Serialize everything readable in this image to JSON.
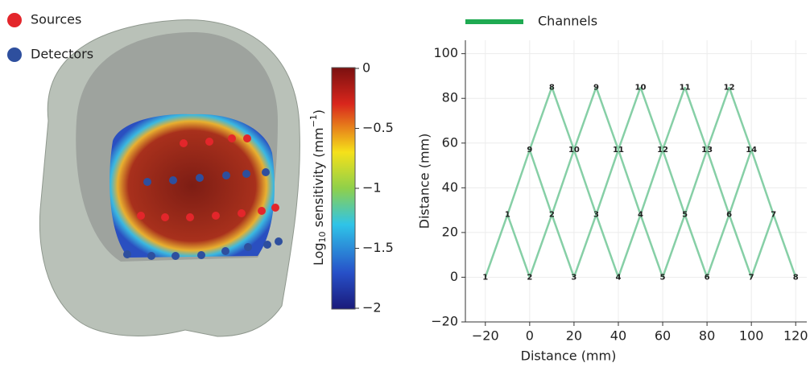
{
  "chart_data": [
    {
      "type": "colorbar",
      "colorbar_label": [
        "Log",
        "10",
        " sensitivity (mm",
        "−1",
        ")"
      ],
      "clim": [
        -2,
        0
      ],
      "cticks": [
        0,
        {
          "value": -0.5,
          "label": "−0.5"
        },
        {
          "value": -1,
          "label": "−1"
        },
        {
          "value": -1.5,
          "label": "−1.5"
        },
        {
          "value": -2,
          "label": "−2"
        }
      ]
    },
    {
      "type": "scatter",
      "xlabel": "Distance (mm)",
      "ylabel": "Distance (mm)",
      "xlim": [
        -29,
        125
      ],
      "ylim": [
        -20,
        106
      ],
      "xticks": [
        {
          "value": -20,
          "label": "−20"
        },
        0,
        20,
        40,
        60,
        80,
        100,
        120
      ],
      "yticks": [
        {
          "value": -20,
          "label": "−20"
        },
        0,
        20,
        40,
        60,
        80,
        100
      ],
      "grid": true,
      "series": [
        {
          "name": "Sources",
          "color": "#e3262b",
          "x": [
            -10,
            10,
            30,
            50,
            70,
            90,
            110,
            10,
            30,
            50,
            70,
            90
          ],
          "y": [
            28,
            28,
            28,
            28,
            28,
            28,
            28,
            85,
            85,
            85,
            85,
            85
          ],
          "labels": [
            1,
            2,
            3,
            4,
            5,
            6,
            7,
            8,
            9,
            10,
            11,
            12
          ]
        },
        {
          "name": "Detectors",
          "color": "#2e4f9e",
          "x": [
            -20,
            0,
            20,
            40,
            60,
            80,
            100,
            120,
            0,
            20,
            40,
            60,
            80,
            100
          ],
          "y": [
            0,
            0,
            0,
            0,
            0,
            0,
            0,
            0,
            57,
            57,
            57,
            57,
            57,
            57
          ],
          "labels": [
            1,
            2,
            3,
            4,
            5,
            6,
            7,
            8,
            9,
            10,
            11,
            12,
            13,
            14
          ]
        }
      ],
      "channels": {
        "name": "Channels",
        "color": "#1faa52",
        "line_color": "#86cfa6",
        "pairs": [
          [
            0,
            0
          ],
          [
            0,
            1
          ],
          [
            0,
            8
          ],
          [
            1,
            1
          ],
          [
            1,
            2
          ],
          [
            1,
            8
          ],
          [
            1,
            9
          ],
          [
            2,
            2
          ],
          [
            2,
            3
          ],
          [
            2,
            9
          ],
          [
            2,
            10
          ],
          [
            3,
            3
          ],
          [
            3,
            4
          ],
          [
            3,
            10
          ],
          [
            3,
            11
          ],
          [
            4,
            4
          ],
          [
            4,
            5
          ],
          [
            4,
            11
          ],
          [
            4,
            12
          ],
          [
            5,
            5
          ],
          [
            5,
            6
          ],
          [
            5,
            12
          ],
          [
            5,
            13
          ],
          [
            6,
            6
          ],
          [
            6,
            7
          ],
          [
            6,
            13
          ],
          [
            7,
            8
          ],
          [
            7,
            9
          ],
          [
            8,
            9
          ],
          [
            8,
            10
          ],
          [
            9,
            10
          ],
          [
            9,
            11
          ],
          [
            10,
            11
          ],
          [
            10,
            12
          ],
          [
            11,
            12
          ],
          [
            11,
            13
          ]
        ]
      }
    }
  ]
}
